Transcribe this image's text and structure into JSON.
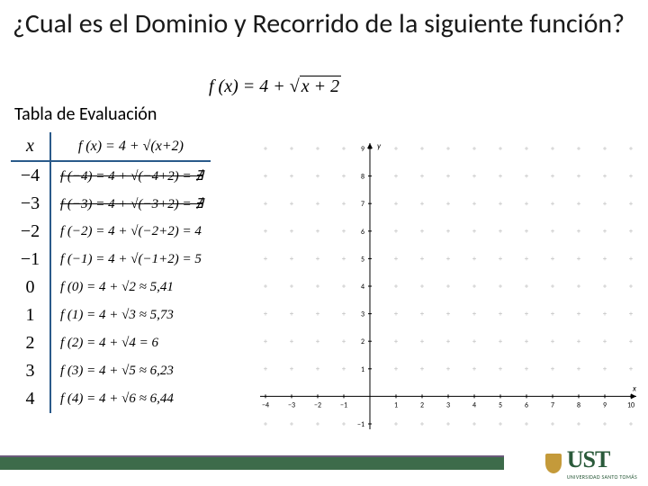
{
  "title": "¿Cual es el Dominio y Recorrido de la siguiente función?",
  "formula": {
    "lhs": "f (x)",
    "eq": "=",
    "rhs_const": "4 +",
    "rhs_radicand": "x + 2"
  },
  "subtitle": "Tabla de Evaluación",
  "table": {
    "header_x": "x",
    "header_fx": "f (x) = 4 + √(x+2)",
    "rows": [
      {
        "x": "−4",
        "expr": "f (−4) = 4 + √(−4+2) = ∄",
        "struck": true
      },
      {
        "x": "−3",
        "expr": "f (−3) = 4 + √(−3+2) = ∄",
        "struck": true
      },
      {
        "x": "−2",
        "expr": "f (−2) = 4 + √(−2+2) = 4"
      },
      {
        "x": "−1",
        "expr": "f (−1) = 4 + √(−1+2) = 5"
      },
      {
        "x": "0",
        "expr": "f (0) = 4 + √2 ≈ 5,41"
      },
      {
        "x": "1",
        "expr": "f (1) = 4 + √3 ≈ 5,73"
      },
      {
        "x": "2",
        "expr": "f (2) = 4 + √4 = 6"
      },
      {
        "x": "3",
        "expr": "f (3) = 4 + √5 ≈ 6,23"
      },
      {
        "x": "4",
        "expr": "f (4) = 4 + √6 ≈ 6,44"
      }
    ]
  },
  "chart": {
    "type": "scatter",
    "x_range": [
      -4,
      10
    ],
    "y_range": [
      -1,
      9
    ],
    "x_ticks": [
      -4,
      -3,
      -2,
      -1,
      0,
      1,
      2,
      3,
      4,
      5,
      6,
      7,
      8,
      9,
      10
    ],
    "y_ticks": [
      -1,
      0,
      1,
      2,
      3,
      4,
      5,
      6,
      7,
      8,
      9
    ],
    "axis_label_x": "x",
    "axis_label_y": "y",
    "grid_dot_color": "#b8b8b8",
    "axis_color": "#000000",
    "tick_font_size": 8,
    "background_color": "#ffffff",
    "series": []
  },
  "logo": {
    "text": "UST",
    "subtitle": "UNIVERSIDAD SANTO TOMÁS"
  },
  "colors": {
    "table_rule": "#2a5a8a",
    "footer_bar": "#3d6b4a",
    "footer_border": "#6a5a7a",
    "logo_shield": "#c49a3a",
    "logo_text": "#2a5a3a"
  }
}
